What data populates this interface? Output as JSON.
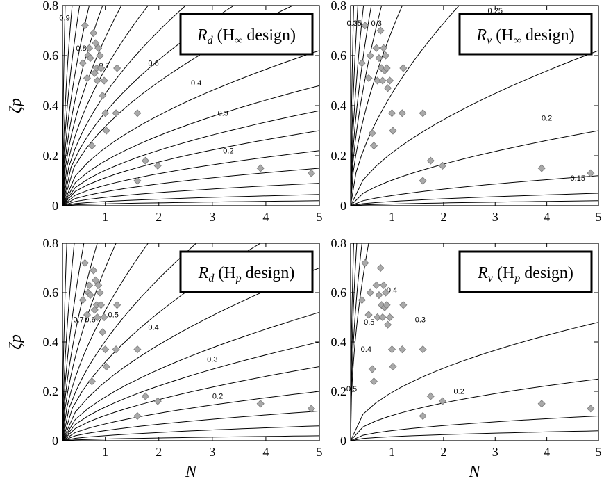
{
  "chart_data": [
    {
      "type": "contour",
      "panel": "top-left",
      "box_label": {
        "sym": "R",
        "sub": "d",
        "design_pre": "(H",
        "design_sub": "∞",
        "design_post": " design)"
      },
      "xlim": [
        0.2,
        5
      ],
      "ylim": [
        0,
        0.8
      ],
      "xticks": [
        "1",
        "2",
        "3",
        "4",
        "5"
      ],
      "yticks": [
        "0",
        "0.2",
        "0.4",
        "0.6",
        "0.8"
      ],
      "xlabel": "",
      "ylabel": "ζp",
      "contour_labels": [
        "0.9",
        "0.8",
        "0.7",
        "0.6",
        "0.4",
        "0.3",
        "0.2"
      ],
      "points": [
        [
          0.58,
          0.57
        ],
        [
          0.62,
          0.72
        ],
        [
          0.66,
          0.51
        ],
        [
          0.68,
          0.6
        ],
        [
          0.7,
          0.63
        ],
        [
          0.72,
          0.59
        ],
        [
          0.75,
          0.24
        ],
        [
          0.78,
          0.69
        ],
        [
          0.8,
          0.53
        ],
        [
          0.82,
          0.65
        ],
        [
          0.84,
          0.55
        ],
        [
          0.85,
          0.5
        ],
        [
          0.87,
          0.63
        ],
        [
          0.9,
          0.6
        ],
        [
          0.92,
          0.55
        ],
        [
          0.95,
          0.44
        ],
        [
          0.98,
          0.5
        ],
        [
          1.0,
          0.37
        ],
        [
          1.02,
          0.3
        ],
        [
          1.2,
          0.37
        ],
        [
          1.22,
          0.55
        ],
        [
          1.6,
          0.37
        ],
        [
          1.6,
          0.1
        ],
        [
          1.75,
          0.18
        ],
        [
          1.98,
          0.16
        ],
        [
          3.9,
          0.15
        ],
        [
          4.85,
          0.13
        ]
      ]
    },
    {
      "type": "contour",
      "panel": "top-right",
      "box_label": {
        "sym": "R",
        "sub": "v",
        "design_pre": "(H",
        "design_sub": "∞",
        "design_post": " design)"
      },
      "xlim": [
        0.2,
        5
      ],
      "ylim": [
        0,
        0.8
      ],
      "xticks": [
        "1",
        "2",
        "3",
        "4",
        "5"
      ],
      "yticks": [
        "0",
        "0.2",
        "0.4",
        "0.6",
        "0.8"
      ],
      "xlabel": "",
      "ylabel": "",
      "contour_labels": [
        "0.35",
        "0.3",
        "0.25",
        "0.2",
        "0.15"
      ],
      "points": [
        [
          0.42,
          0.57
        ],
        [
          0.48,
          0.72
        ],
        [
          0.55,
          0.51
        ],
        [
          0.58,
          0.6
        ],
        [
          0.62,
          0.29
        ],
        [
          0.65,
          0.24
        ],
        [
          0.7,
          0.63
        ],
        [
          0.72,
          0.5
        ],
        [
          0.75,
          0.59
        ],
        [
          0.78,
          0.7
        ],
        [
          0.8,
          0.55
        ],
        [
          0.82,
          0.5
        ],
        [
          0.84,
          0.63
        ],
        [
          0.86,
          0.54
        ],
        [
          0.88,
          0.6
        ],
        [
          0.9,
          0.55
        ],
        [
          0.92,
          0.47
        ],
        [
          0.96,
          0.5
        ],
        [
          1.0,
          0.37
        ],
        [
          1.02,
          0.3
        ],
        [
          1.2,
          0.37
        ],
        [
          1.22,
          0.55
        ],
        [
          1.6,
          0.37
        ],
        [
          1.6,
          0.1
        ],
        [
          1.75,
          0.18
        ],
        [
          1.98,
          0.16
        ],
        [
          3.9,
          0.15
        ],
        [
          4.85,
          0.13
        ]
      ]
    },
    {
      "type": "contour",
      "panel": "bottom-left",
      "box_label": {
        "sym": "R",
        "sub": "d",
        "design_pre": "(H",
        "design_sub": "p",
        "design_post": " design)"
      },
      "xlim": [
        0.2,
        5
      ],
      "ylim": [
        0,
        0.8
      ],
      "xticks": [
        "1",
        "2",
        "3",
        "4",
        "5"
      ],
      "yticks": [
        "0",
        "0.2",
        "0.4",
        "0.6",
        "0.8"
      ],
      "xlabel": "N",
      "ylabel": "ζp",
      "contour_labels": [
        "0.7",
        "0.6",
        "0.5",
        "0.4",
        "0.3",
        "0.2"
      ],
      "points": [
        [
          0.58,
          0.57
        ],
        [
          0.62,
          0.72
        ],
        [
          0.66,
          0.51
        ],
        [
          0.68,
          0.6
        ],
        [
          0.7,
          0.63
        ],
        [
          0.72,
          0.59
        ],
        [
          0.75,
          0.24
        ],
        [
          0.78,
          0.69
        ],
        [
          0.8,
          0.53
        ],
        [
          0.82,
          0.65
        ],
        [
          0.84,
          0.55
        ],
        [
          0.85,
          0.5
        ],
        [
          0.87,
          0.63
        ],
        [
          0.9,
          0.6
        ],
        [
          0.92,
          0.55
        ],
        [
          0.95,
          0.44
        ],
        [
          0.98,
          0.5
        ],
        [
          1.0,
          0.37
        ],
        [
          1.02,
          0.3
        ],
        [
          1.2,
          0.37
        ],
        [
          1.22,
          0.55
        ],
        [
          1.6,
          0.37
        ],
        [
          1.6,
          0.1
        ],
        [
          1.75,
          0.18
        ],
        [
          1.98,
          0.16
        ],
        [
          3.9,
          0.15
        ],
        [
          4.85,
          0.13
        ]
      ]
    },
    {
      "type": "contour",
      "panel": "bottom-right",
      "box_label": {
        "sym": "R",
        "sub": "v",
        "design_pre": "(H",
        "design_sub": "p",
        "design_post": " design)"
      },
      "xlim": [
        0.2,
        5
      ],
      "ylim": [
        0,
        0.8
      ],
      "xticks": [
        "1",
        "2",
        "3",
        "4",
        "5"
      ],
      "yticks": [
        "0",
        "0.2",
        "0.4",
        "0.6",
        "0.8"
      ],
      "xlabel": "N",
      "ylabel": "",
      "contour_labels": [
        "0.5",
        "0.4",
        "0.5",
        "0.4",
        "0.3",
        "0.2"
      ],
      "points": [
        [
          0.42,
          0.57
        ],
        [
          0.48,
          0.72
        ],
        [
          0.55,
          0.51
        ],
        [
          0.58,
          0.6
        ],
        [
          0.62,
          0.29
        ],
        [
          0.65,
          0.24
        ],
        [
          0.7,
          0.63
        ],
        [
          0.72,
          0.5
        ],
        [
          0.75,
          0.59
        ],
        [
          0.78,
          0.7
        ],
        [
          0.8,
          0.55
        ],
        [
          0.82,
          0.5
        ],
        [
          0.84,
          0.63
        ],
        [
          0.86,
          0.54
        ],
        [
          0.88,
          0.6
        ],
        [
          0.9,
          0.55
        ],
        [
          0.92,
          0.47
        ],
        [
          0.96,
          0.5
        ],
        [
          1.0,
          0.37
        ],
        [
          1.02,
          0.3
        ],
        [
          1.2,
          0.37
        ],
        [
          1.22,
          0.55
        ],
        [
          1.6,
          0.37
        ],
        [
          1.6,
          0.1
        ],
        [
          1.75,
          0.18
        ],
        [
          1.98,
          0.16
        ],
        [
          3.9,
          0.15
        ],
        [
          4.85,
          0.13
        ]
      ]
    }
  ],
  "colors": {
    "marker_fill": "#a9a9a9",
    "marker_stroke": "#7a7a7a",
    "line": "#000000"
  }
}
